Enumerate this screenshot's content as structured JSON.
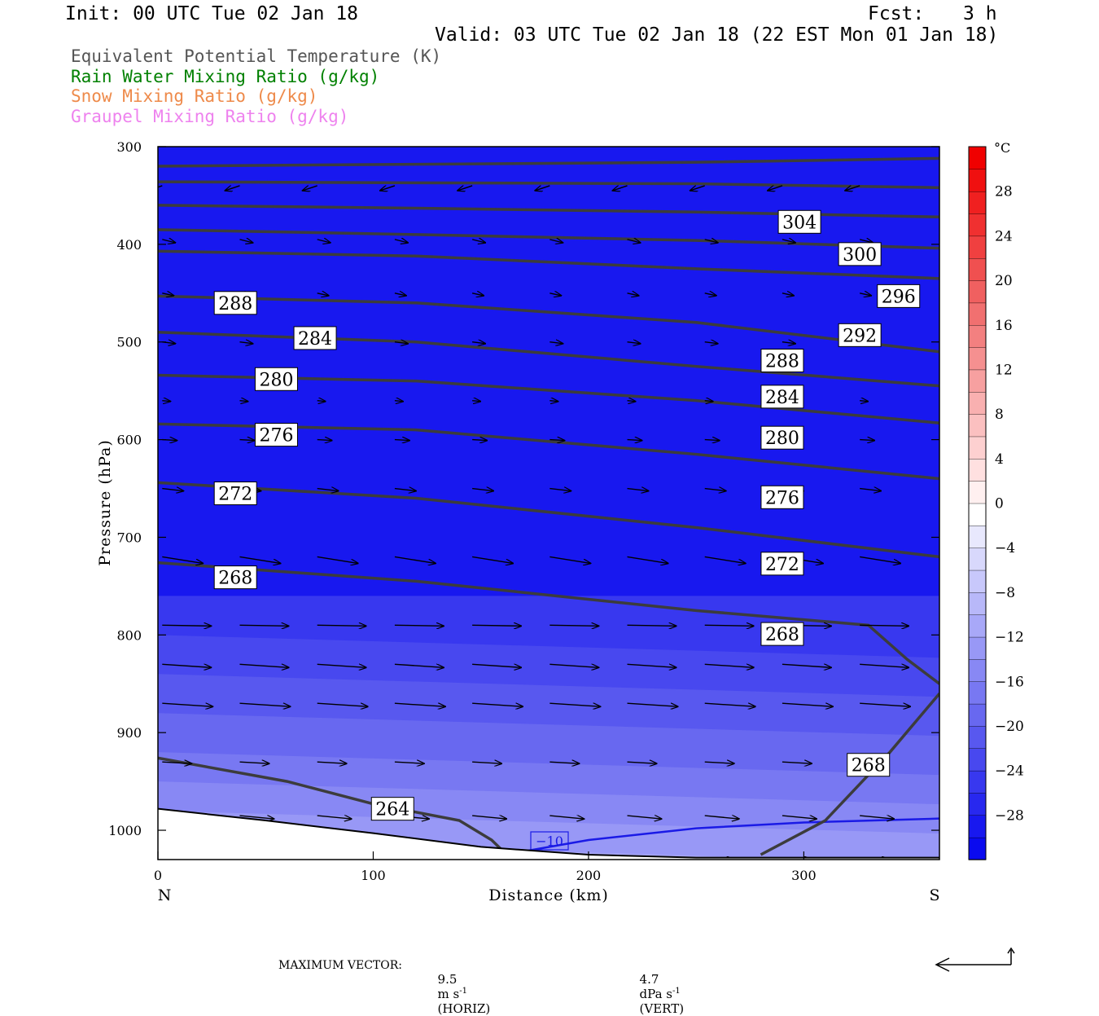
{
  "header": {
    "init": "Init: 00 UTC Tue 02 Jan 18",
    "fcst_label": "Fcst:",
    "fcst_value": "3 h",
    "valid": "Valid: 03 UTC Tue 02 Jan 18 (22 EST Mon 01 Jan 18)"
  },
  "legend": {
    "items": [
      {
        "label": "Equivalent Potential Temperature (K)",
        "color": "#555555"
      },
      {
        "label": "Rain Water Mixing Ratio (g/kg)",
        "color": "#008000"
      },
      {
        "label": "Snow Mixing Ratio (g/kg)",
        "color": "#ee8a4a"
      },
      {
        "label": "Graupel Mixing Ratio (g/kg)",
        "color": "#ee82ee"
      }
    ]
  },
  "footer": {
    "max_vector_label": "MAXIMUM VECTOR:",
    "horiz_value": "9.5",
    "horiz_unit": "m s",
    "horiz_exp": "-1",
    "horiz_tag": "(HORIZ)",
    "vert_value": "4.7",
    "vert_unit": "dPa s",
    "vert_exp": "-1",
    "vert_tag": "(VERT)"
  },
  "chart_data": {
    "type": "cross-section",
    "xlabel": "Distance (km)",
    "ylabel": "Pressure (hPa)",
    "xlim": [
      0,
      363
    ],
    "ylim": [
      1030,
      300
    ],
    "x_ticks": [
      0,
      100,
      200,
      300
    ],
    "y_ticks": [
      300,
      400,
      500,
      600,
      700,
      800,
      900,
      1000
    ],
    "left_end_label": "N",
    "right_end_label": "S",
    "colorbar": {
      "unit": "°C",
      "tick_labels": [
        "28",
        "24",
        "20",
        "16",
        "12",
        "8",
        "4",
        "0",
        "−4",
        "−8",
        "−12",
        "−16",
        "−20",
        "−24",
        "−28"
      ],
      "tick_values": [
        28,
        24,
        20,
        16,
        12,
        8,
        4,
        0,
        -4,
        -8,
        -12,
        -16,
        -20,
        -24,
        -28
      ],
      "range": [
        -32,
        32
      ],
      "colors": [
        "#0a0aef",
        "#1818ef",
        "#2828ef",
        "#3838ef",
        "#4848ef",
        "#5858ef",
        "#6868f0",
        "#7878f2",
        "#8888f4",
        "#9898f6",
        "#a8a8f8",
        "#b8b8f9",
        "#c8c8fb",
        "#d8d8fc",
        "#e8e8fd",
        "#ffffff",
        "#fff0f0",
        "#ffe0e0",
        "#fdd0d0",
        "#fbc0c0",
        "#f9b0b0",
        "#f7a0a0",
        "#f59090",
        "#f38080",
        "#f17070",
        "#f06060",
        "#f05050",
        "#f04040",
        "#f03030",
        "#f02020",
        "#f01010",
        "#f00000"
      ]
    },
    "temperature_bands": [
      {
        "level": 300,
        "temp_c": -30
      },
      {
        "level": 650,
        "temp_c": -29
      },
      {
        "level": 760,
        "temp_c": -25
      },
      {
        "level": 800,
        "temp_c": -23
      },
      {
        "level": 840,
        "temp_c": -21
      },
      {
        "level": 880,
        "temp_c": -19
      },
      {
        "level": 920,
        "temp_c": -17
      },
      {
        "level": 950,
        "temp_c": -15
      },
      {
        "level": 980,
        "temp_c": -13
      },
      {
        "level": 1010,
        "temp_c": -11
      }
    ],
    "isotherm_label": "−10",
    "theta_e_contours": [
      {
        "value": 308,
        "labels": []
      },
      {
        "value": 304,
        "labels": [
          {
            "x": 298,
            "p": 377
          }
        ]
      },
      {
        "value": 300,
        "labels": [
          {
            "x": 326,
            "p": 410
          }
        ]
      },
      {
        "value": 296,
        "labels": [
          {
            "x": 344,
            "p": 453
          }
        ]
      },
      {
        "value": 292,
        "labels": [
          {
            "x": 326,
            "p": 493
          }
        ]
      },
      {
        "value": 288,
        "labels": [
          {
            "x": 36,
            "p": 460
          },
          {
            "x": 290,
            "p": 519
          }
        ]
      },
      {
        "value": 284,
        "labels": [
          {
            "x": 73,
            "p": 496
          },
          {
            "x": 290,
            "p": 556
          }
        ]
      },
      {
        "value": 280,
        "labels": [
          {
            "x": 55,
            "p": 538
          },
          {
            "x": 290,
            "p": 598
          }
        ]
      },
      {
        "value": 276,
        "labels": [
          {
            "x": 55,
            "p": 595
          },
          {
            "x": 290,
            "p": 659
          }
        ]
      },
      {
        "value": 272,
        "labels": [
          {
            "x": 36,
            "p": 655
          },
          {
            "x": 290,
            "p": 727
          }
        ]
      },
      {
        "value": 268,
        "labels": [
          {
            "x": 36,
            "p": 741
          },
          {
            "x": 290,
            "p": 799
          },
          {
            "x": 330,
            "p": 933
          }
        ]
      },
      {
        "value": 264,
        "labels": [
          {
            "x": 109,
            "p": 978
          }
        ]
      }
    ],
    "surface_pressure": [
      {
        "x": 0,
        "p": 978
      },
      {
        "x": 50,
        "p": 990
      },
      {
        "x": 100,
        "p": 1003
      },
      {
        "x": 150,
        "p": 1017
      },
      {
        "x": 200,
        "p": 1025
      },
      {
        "x": 250,
        "p": 1028
      },
      {
        "x": 300,
        "p": 1028
      },
      {
        "x": 363,
        "p": 1028
      }
    ]
  }
}
